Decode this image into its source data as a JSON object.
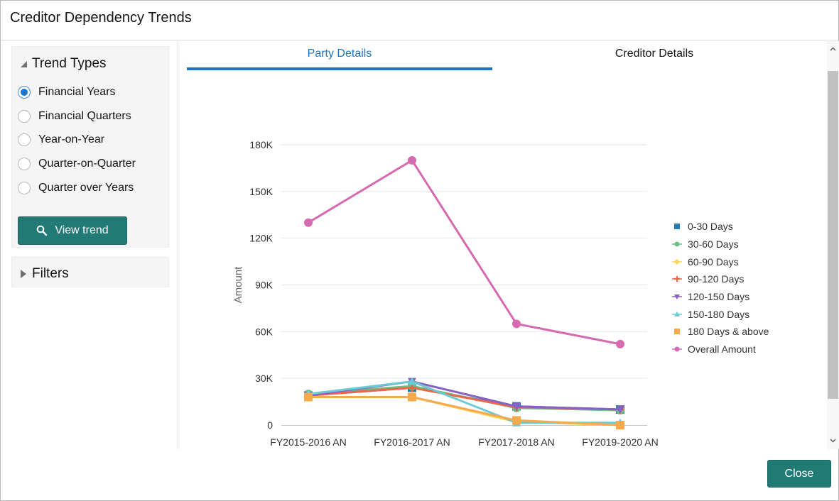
{
  "dialog": {
    "title": "Creditor Dependency Trends"
  },
  "trend_types": {
    "heading": "Trend Types",
    "options": [
      {
        "label": "Financial Years",
        "selected": true
      },
      {
        "label": "Financial Quarters",
        "selected": false
      },
      {
        "label": "Year-on-Year",
        "selected": false
      },
      {
        "label": "Quarter-on-Quarter",
        "selected": false
      },
      {
        "label": "Quarter over Years",
        "selected": false
      }
    ],
    "view_button": "View trend"
  },
  "filters": {
    "heading": "Filters"
  },
  "tabs": [
    {
      "label": "Party Details",
      "active": true
    },
    {
      "label": "Creditor Details",
      "active": false
    }
  ],
  "footer": {
    "close_label": "Close"
  },
  "colors": {
    "accent": "#1f74c7",
    "button": "#227a77"
  },
  "chart_data": {
    "type": "line",
    "ylabel": "Amount",
    "categories": [
      "FY2015-2016 AN",
      "FY2016-2017 AN",
      "FY2017-2018 AN",
      "FY2019-2020 AN"
    ],
    "y_ticks": [
      "0",
      "30K",
      "60K",
      "90K",
      "120K",
      "150K",
      "180K"
    ],
    "ylim": [
      0,
      180000
    ],
    "grid": true,
    "legend_position": "right",
    "series": [
      {
        "name": "0-30 Days",
        "color": "#267db3",
        "marker": "square",
        "values": [
          19000,
          24000,
          12000,
          10000
        ]
      },
      {
        "name": "30-60 Days",
        "color": "#68c182",
        "marker": "circle",
        "values": [
          20000,
          25000,
          11000,
          9500
        ]
      },
      {
        "name": "60-90 Days",
        "color": "#fad55c",
        "marker": "diamond",
        "values": [
          18000,
          18000,
          2000,
          0
        ]
      },
      {
        "name": "90-120 Days",
        "color": "#ed6647",
        "marker": "plus",
        "values": [
          19000,
          24000,
          11500,
          10000
        ]
      },
      {
        "name": "120-150 Days",
        "color": "#8561c8",
        "marker": "triangle-down",
        "values": [
          19000,
          28000,
          12000,
          10000
        ]
      },
      {
        "name": "150-180 Days",
        "color": "#6ccbd2",
        "marker": "triangle-up",
        "values": [
          20000,
          28000,
          1500,
          1500
        ]
      },
      {
        "name": "180 Days & above",
        "color": "#f7a94e",
        "marker": "square",
        "values": [
          18000,
          18000,
          3000,
          0
        ]
      },
      {
        "name": "Overall Amount",
        "color": "#d66ab1",
        "marker": "circle",
        "values": [
          130000,
          170000,
          65000,
          52000
        ]
      }
    ]
  }
}
